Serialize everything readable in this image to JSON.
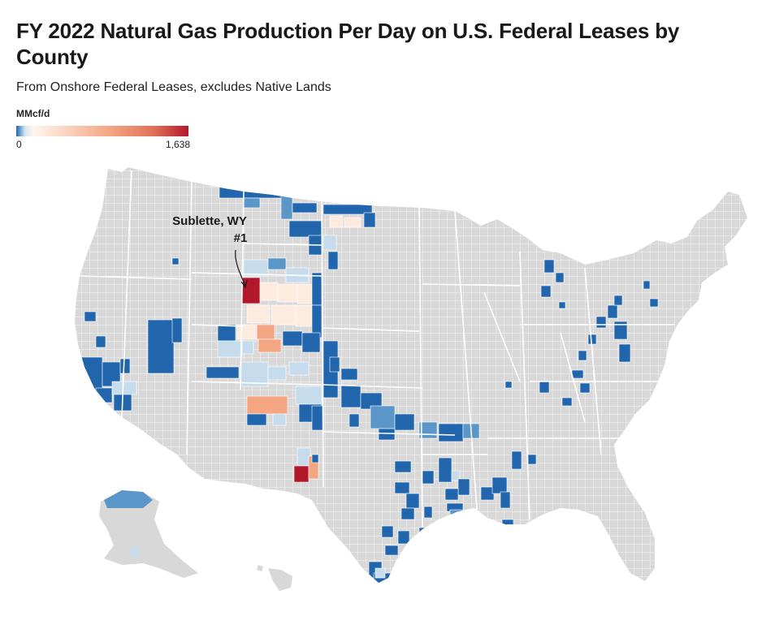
{
  "title": "FY 2022 Natural Gas Production Per Day on U.S. Federal Leases by County",
  "subtitle": "From Onshore Federal Leases, excludes Native Lands",
  "legend": {
    "title": "MMcf/d",
    "min_label": "0",
    "max_label": "1,638",
    "min_value": 0,
    "max_value": 1638,
    "colors": [
      "#2166ac",
      "#d1e5f0",
      "#fff6ef",
      "#f4a582",
      "#b2182b"
    ]
  },
  "annotation": {
    "line1": "Sublette, WY",
    "line2": "#1"
  },
  "colors": {
    "land": "#d8d8d8",
    "no_data": "#d8d8d8",
    "border": "#ffffff",
    "low": "#2166ac",
    "mid_low": "#5a96c8",
    "light_blue": "#c6dcec",
    "pale": "#fdebe0",
    "peach": "#f4a582",
    "high": "#b2182b"
  }
}
